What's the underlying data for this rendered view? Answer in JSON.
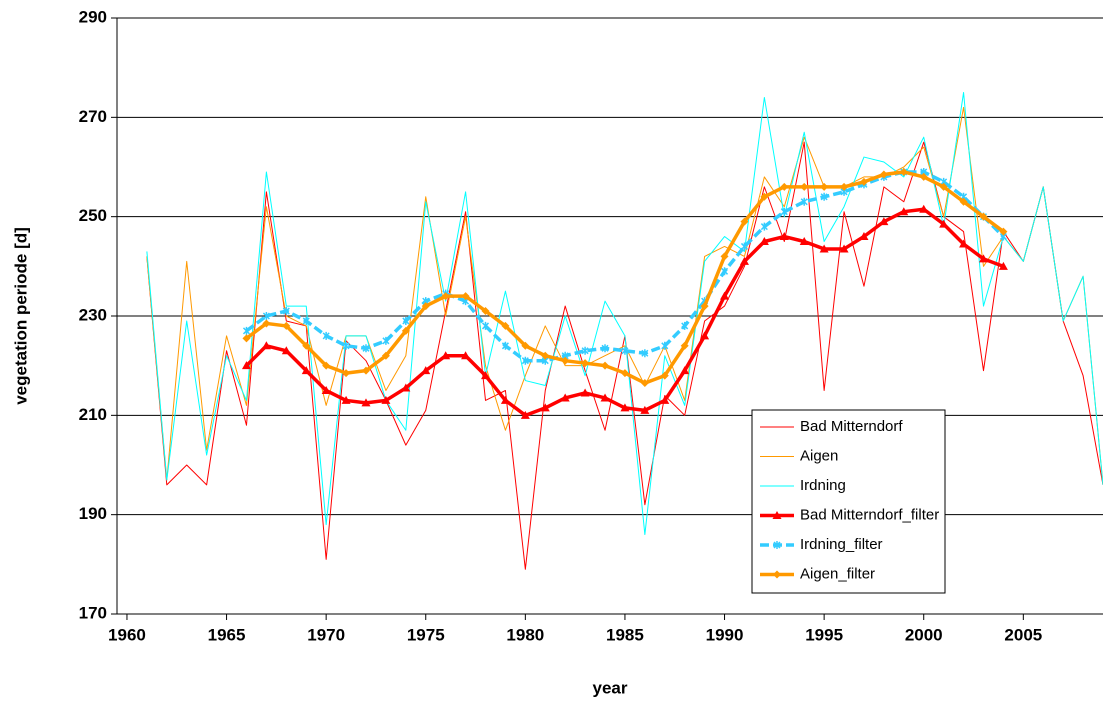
{
  "chart_data": {
    "type": "line",
    "xlabel": "year",
    "ylabel": "vegetation periode [d]",
    "xlim": [
      1959.5,
      2009
    ],
    "xticks": [
      1960,
      1965,
      1970,
      1975,
      1980,
      1985,
      1990,
      1995,
      2000,
      2005
    ],
    "ylim": [
      170,
      290
    ],
    "yticks": [
      170,
      190,
      210,
      230,
      250,
      270,
      290
    ],
    "grid": true,
    "legend": "lower right",
    "series": [
      {
        "name": "Bad Mitterndorf",
        "color": "#ff0000",
        "x": [
          1961,
          1962,
          1963,
          1964,
          1965,
          1966,
          1967,
          1968,
          1969,
          1970,
          1971,
          1972,
          1973,
          1974,
          1975,
          1976,
          1977,
          1978,
          1979,
          1980,
          1981,
          1982,
          1983,
          1984,
          1985,
          1986,
          1987,
          1988,
          1989,
          1990,
          1991,
          1992,
          1993,
          1994,
          1995,
          1996,
          1997,
          1998,
          1999,
          2000,
          2001,
          2002,
          2003,
          2004,
          2005,
          2006,
          2007,
          2008,
          2009
        ],
        "values": [
          242,
          196,
          200,
          196,
          223,
          208,
          255,
          229,
          228,
          181,
          225,
          221,
          213,
          204,
          211,
          231,
          251,
          213,
          215,
          179,
          215,
          232,
          219,
          207,
          226,
          192,
          214,
          210,
          229,
          232,
          240,
          256,
          245,
          265,
          215,
          251,
          236,
          256,
          253,
          265,
          250,
          247,
          219,
          247,
          241,
          256,
          229,
          218,
          196
        ]
      },
      {
        "name": "Aigen",
        "color": "#ff9900",
        "x": [
          1961,
          1962,
          1963,
          1964,
          1965,
          1966,
          1967,
          1968,
          1969,
          1970,
          1971,
          1972,
          1973,
          1974,
          1975,
          1976,
          1977,
          1978,
          1979,
          1980,
          1981,
          1982,
          1983,
          1984,
          1985,
          1986,
          1987,
          1988,
          1989,
          1990,
          1991,
          1992,
          1993,
          1994,
          1995,
          1996,
          1997,
          1998,
          1999,
          2000,
          2001,
          2002,
          2003,
          2004,
          2005,
          2006,
          2007,
          2008,
          2009
        ],
        "values": [
          242,
          197,
          241,
          203,
          226,
          212,
          252,
          230,
          228,
          212,
          226,
          226,
          215,
          222,
          254,
          230,
          250,
          220,
          207,
          218,
          228,
          220,
          220,
          222,
          224,
          216,
          224,
          213,
          242,
          244,
          242,
          258,
          252,
          266,
          256,
          256,
          258,
          258,
          260,
          264,
          250,
          272,
          240,
          246,
          241,
          256,
          229,
          238,
          196
        ]
      },
      {
        "name": "Irdning",
        "color": "#00ffff",
        "x": [
          1961,
          1962,
          1963,
          1964,
          1965,
          1966,
          1967,
          1968,
          1969,
          1970,
          1971,
          1972,
          1973,
          1974,
          1975,
          1976,
          1977,
          1978,
          1979,
          1980,
          1981,
          1982,
          1983,
          1984,
          1985,
          1986,
          1987,
          1988,
          1989,
          1990,
          1991,
          1992,
          1993,
          1994,
          1995,
          1996,
          1997,
          1998,
          1999,
          2000,
          2001,
          2002,
          2003,
          2004,
          2005,
          2006,
          2007,
          2008,
          2009
        ],
        "values": [
          243,
          197,
          229,
          202,
          222,
          213,
          259,
          232,
          232,
          188,
          226,
          226,
          213,
          207,
          253,
          233,
          255,
          218,
          235,
          217,
          216,
          230,
          218,
          233,
          226,
          186,
          222,
          212,
          241,
          246,
          243,
          274,
          250,
          267,
          245,
          252,
          262,
          261,
          258,
          266,
          248,
          275,
          232,
          246,
          241,
          256,
          229,
          238,
          196
        ]
      },
      {
        "name": "Bad Mitterndorf_filter",
        "color": "#ff0000",
        "marker": "triangle",
        "x": [
          1966,
          1967,
          1968,
          1969,
          1970,
          1971,
          1972,
          1973,
          1974,
          1975,
          1976,
          1977,
          1978,
          1979,
          1980,
          1981,
          1982,
          1983,
          1984,
          1985,
          1986,
          1987,
          1988,
          1989,
          1990,
          1991,
          1992,
          1993,
          1994,
          1995,
          1996,
          1997,
          1998,
          1999,
          2000,
          2001,
          2002,
          2003,
          2004
        ],
        "values": [
          220,
          224,
          223,
          219,
          215,
          213,
          212.5,
          213,
          215.5,
          219,
          222,
          222,
          218,
          213,
          210,
          211.5,
          213.5,
          214.5,
          213.5,
          211.5,
          211,
          213,
          219,
          226,
          234,
          241,
          245,
          246,
          245,
          243.5,
          243.5,
          246,
          249,
          251,
          251.5,
          248.5,
          244.5,
          241.5,
          240
        ]
      },
      {
        "name": "Irdning_filter",
        "color": "#33ccff",
        "marker": "x",
        "dashed": true,
        "x": [
          1966,
          1967,
          1968,
          1969,
          1970,
          1971,
          1972,
          1973,
          1974,
          1975,
          1976,
          1977,
          1978,
          1979,
          1980,
          1981,
          1982,
          1983,
          1984,
          1985,
          1986,
          1987,
          1988,
          1989,
          1990,
          1991,
          1992,
          1993,
          1994,
          1995,
          1996,
          1997,
          1998,
          1999,
          2000,
          2001,
          2002,
          2003,
          2004
        ],
        "values": [
          227,
          230,
          231,
          229,
          226,
          224,
          223.5,
          225,
          229,
          233,
          234.5,
          233,
          228,
          224,
          221,
          221,
          222,
          223,
          223.5,
          223,
          222.5,
          224,
          228,
          233,
          239,
          244,
          248,
          251,
          253,
          254,
          255,
          256.5,
          258,
          259,
          259,
          257,
          254,
          250,
          246
        ]
      },
      {
        "name": "Aigen_filter",
        "color": "#ff9900",
        "marker": "diamond",
        "x": [
          1966,
          1967,
          1968,
          1969,
          1970,
          1971,
          1972,
          1973,
          1974,
          1975,
          1976,
          1977,
          1978,
          1979,
          1980,
          1981,
          1982,
          1983,
          1984,
          1985,
          1986,
          1987,
          1988,
          1989,
          1990,
          1991,
          1992,
          1993,
          1994,
          1995,
          1996,
          1997,
          1998,
          1999,
          2000,
          2001,
          2002,
          2003,
          2004
        ],
        "values": [
          225.5,
          228.5,
          228,
          224,
          220,
          218.5,
          219,
          222,
          227,
          232,
          234,
          234,
          231,
          228,
          224,
          222,
          221,
          220.5,
          220,
          218.5,
          216.5,
          218,
          224,
          232,
          242,
          249,
          254,
          256,
          256,
          256,
          256,
          257,
          258.5,
          259,
          258,
          256,
          253,
          250,
          247
        ]
      }
    ]
  }
}
